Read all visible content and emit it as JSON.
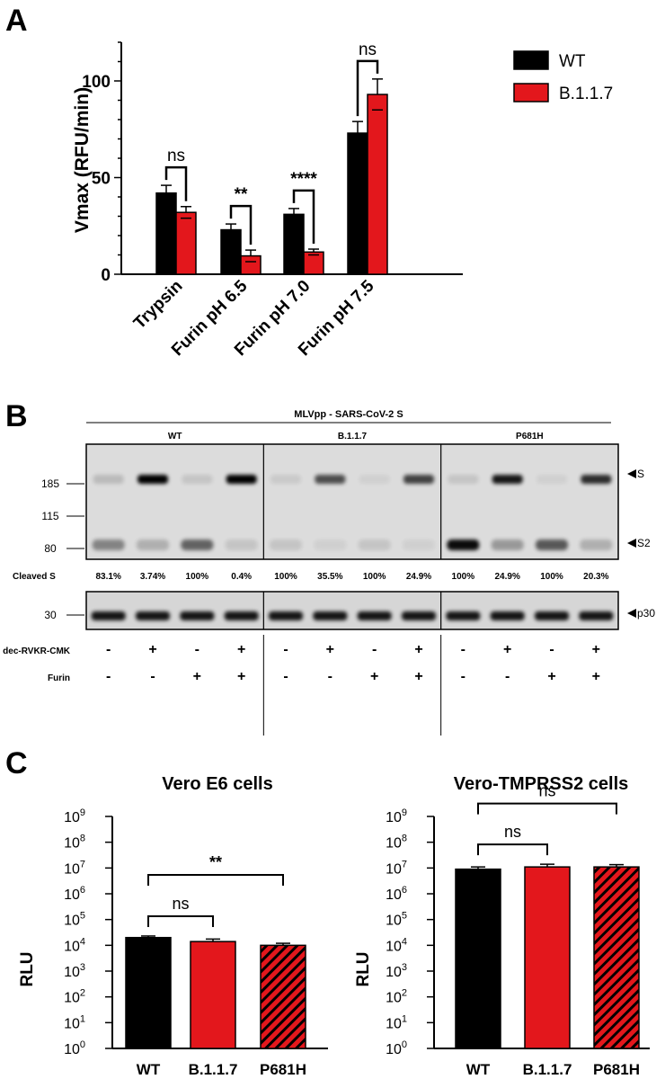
{
  "panels": {
    "a": "A",
    "b": "B",
    "c": "C"
  },
  "chart_data": [
    {
      "type": "bar",
      "panel": "A",
      "title": "",
      "xlabel": "",
      "ylabel": "Vmax (RFU/min)",
      "ylim": [
        0,
        120
      ],
      "yticks": [
        "0",
        "50",
        "100"
      ],
      "categories": [
        "Trypsin",
        "Furin pH 6.5",
        "Furin pH 7.0",
        "Furin pH 7.5"
      ],
      "series": [
        {
          "name": "WT",
          "color": "#000000",
          "values": [
            42,
            23,
            31,
            73
          ],
          "errors": [
            4,
            3,
            3,
            6
          ]
        },
        {
          "name": "B.1.1.7",
          "color": "#e3171c",
          "values": [
            32,
            9.5,
            11.5,
            93
          ],
          "errors": [
            3,
            3,
            1.5,
            8
          ]
        }
      ],
      "significance": [
        "ns",
        "**",
        "****",
        "ns"
      ],
      "legend_position": "top-right"
    },
    {
      "type": "bar",
      "panel": "C-left",
      "title": "Vero E6 cells",
      "xlabel": "",
      "ylabel": "RLU",
      "yscale": "log",
      "ylim": [
        1,
        1000000000
      ],
      "categories": [
        "WT",
        "B.1.1.7",
        "P681H"
      ],
      "values": [
        20000,
        14000,
        10000
      ],
      "errors": [
        3000,
        3500,
        2000
      ],
      "colors": [
        "#000000",
        "#e3171c",
        "#e3171c"
      ],
      "hatch": [
        false,
        false,
        true
      ],
      "comparisons": [
        {
          "from": "WT",
          "to": "B.1.1.7",
          "label": "ns"
        },
        {
          "from": "WT",
          "to": "P681H",
          "label": "**"
        }
      ]
    },
    {
      "type": "bar",
      "panel": "C-right",
      "title": "Vero-TMPRSS2 cells",
      "xlabel": "",
      "ylabel": "RLU",
      "yscale": "log",
      "ylim": [
        1,
        1000000000
      ],
      "categories": [
        "WT",
        "B.1.1.7",
        "P681H"
      ],
      "values": [
        9000000,
        11000000,
        11000000
      ],
      "errors": [
        2000000,
        3000000,
        2500000
      ],
      "colors": [
        "#000000",
        "#e3171c",
        "#e3171c"
      ],
      "hatch": [
        false,
        false,
        true
      ],
      "comparisons": [
        {
          "from": "WT",
          "to": "B.1.1.7",
          "label": "ns"
        },
        {
          "from": "WT",
          "to": "P681H",
          "label": "ns"
        }
      ]
    }
  ],
  "blot": {
    "header": "MLVpp - SARS-CoV-2 S",
    "groups": [
      "WT",
      "B.1.1.7",
      "P681H"
    ],
    "mw_markers": [
      "185",
      "115",
      "80"
    ],
    "lower_mw": "30",
    "band_labels": [
      "S",
      "S2"
    ],
    "lower_band_label": "p30",
    "cleaved_label": "Cleaved S",
    "cleaved_values": [
      "83.1%",
      "3.74%",
      "100%",
      "0.4%",
      "100%",
      "35.5%",
      "100%",
      "24.9%",
      "100%",
      "24.9%",
      "100%",
      "20.3%"
    ],
    "s_band_intensity": [
      0.15,
      1.0,
      0.1,
      1.0,
      0.08,
      0.65,
      0.05,
      0.7,
      0.1,
      0.9,
      0.05,
      0.8
    ],
    "s2_band_intensity": [
      0.4,
      0.2,
      0.55,
      0.1,
      0.1,
      0.05,
      0.1,
      0.05,
      0.95,
      0.3,
      0.6,
      0.2
    ],
    "treatments": [
      {
        "label": "dec-RVKR-CMK",
        "values": [
          "-",
          "+",
          "-",
          "+",
          "-",
          "+",
          "-",
          "+",
          "-",
          "+",
          "-",
          "+"
        ]
      },
      {
        "label": "Furin",
        "values": [
          "-",
          "-",
          "+",
          "+",
          "-",
          "-",
          "+",
          "+",
          "-",
          "-",
          "+",
          "+"
        ]
      }
    ]
  }
}
